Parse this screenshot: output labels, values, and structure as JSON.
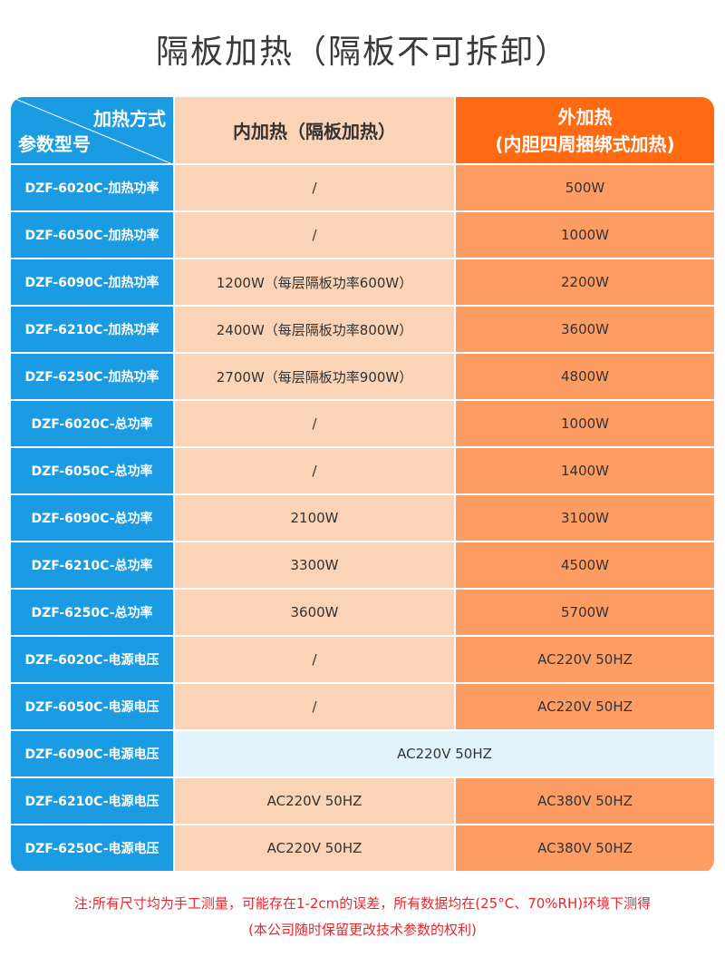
{
  "title": "隔板加热（隔板不可拆卸）",
  "table": {
    "header": {
      "corner_top": "加热方式",
      "corner_bottom": "参数型号",
      "inner": "内加热（隔板加热）",
      "outer_line1": "外加热",
      "outer_line2": "(内胆四周捆绑式加热)"
    },
    "rows": [
      [
        "DZF-6020C-加热功率",
        "/",
        "500W"
      ],
      [
        "DZF-6050C-加热功率",
        "/",
        "1000W"
      ],
      [
        "DZF-6090C-加热功率",
        "1200W（每层隔板功率600W）",
        "2200W"
      ],
      [
        "DZF-6210C-加热功率",
        "2400W（每层隔板功率800W）",
        "3600W"
      ],
      [
        "DZF-6250C-加热功率",
        "2700W（每层隔板功率900W）",
        "4800W"
      ],
      [
        "DZF-6020C-总功率",
        "/",
        "1000W"
      ],
      [
        "DZF-6050C-总功率",
        "/",
        "1400W"
      ],
      [
        "DZF-6090C-总功率",
        "2100W",
        "3100W"
      ],
      [
        "DZF-6210C-总功率",
        "3300W",
        "4500W"
      ],
      [
        "DZF-6250C-总功率",
        "3600W",
        "5700W"
      ],
      [
        "DZF-6020C-电源电压",
        "/",
        "AC220V 50HZ"
      ],
      [
        "DZF-6050C-电源电压",
        "/",
        "AC220V 50HZ"
      ],
      [
        "DZF-6090C-电源电压",
        "AC220V 50HZ"
      ],
      [
        "DZF-6210C-电源电压",
        "AC220V 50HZ",
        "AC380V 50HZ"
      ],
      [
        "DZF-6250C-电源电压",
        "AC220V 50HZ",
        "AC380V 50HZ"
      ]
    ]
  },
  "notes": [
    "注:所有尺寸均为手工测量，可能存在1-2cm的误差，所有数据均在(25°C、70%RH)环境下测得",
    "(本公司随时保留更改技术参数的权利)"
  ]
}
